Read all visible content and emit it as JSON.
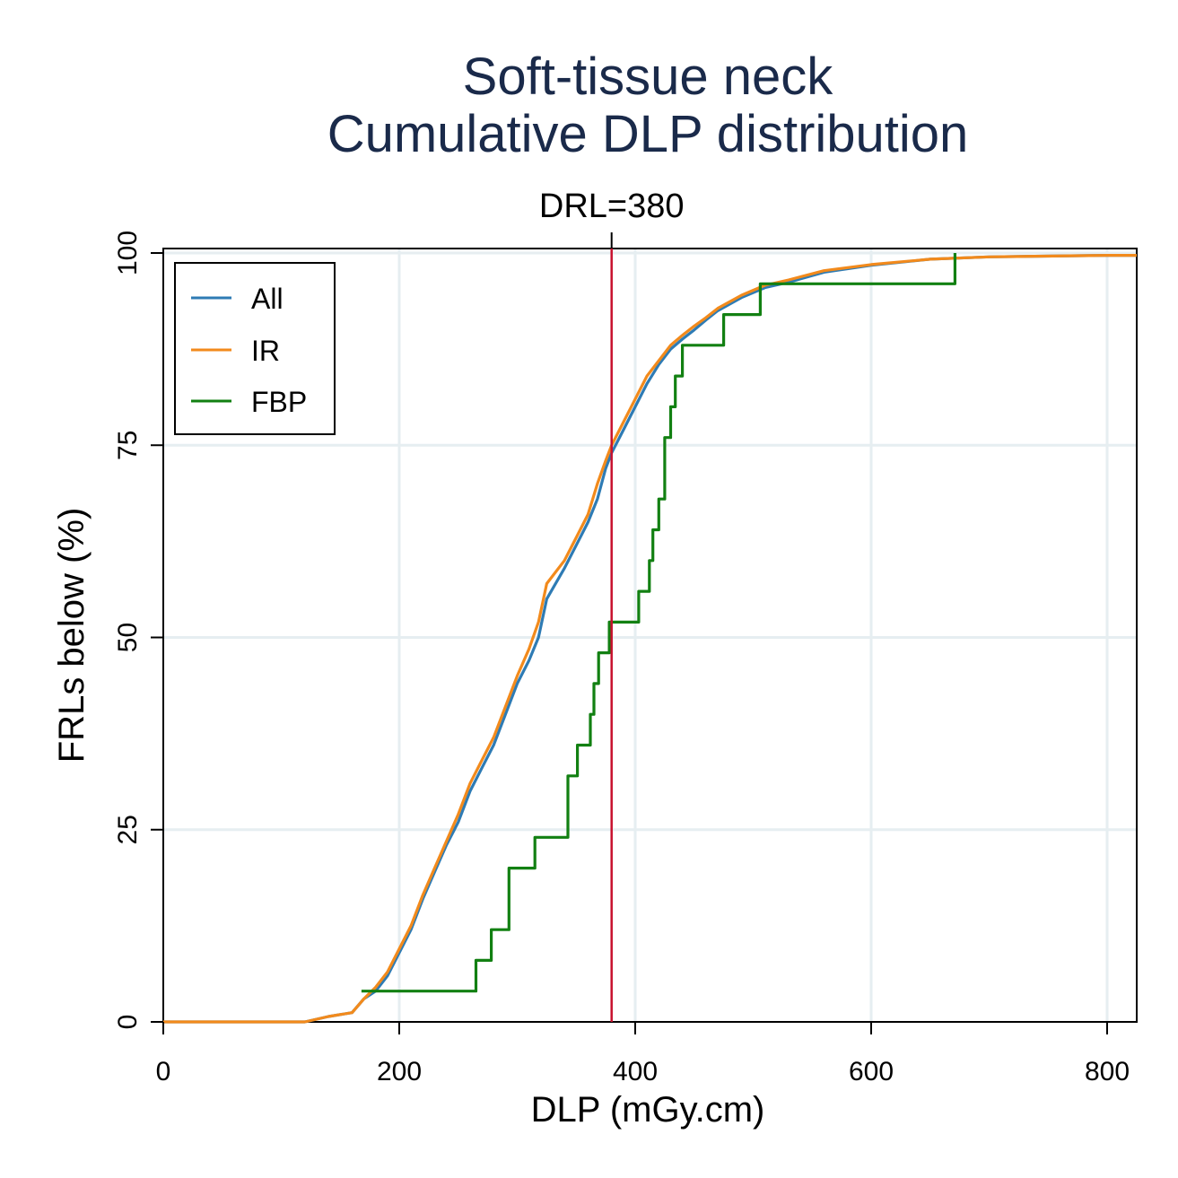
{
  "chart_data": {
    "type": "line",
    "title": [
      "Soft-tissue neck",
      "Cumulative DLP distribution"
    ],
    "xlabel": "DLP (mGy.cm)",
    "ylabel": "FRLs below (%)",
    "xlim": [
      0,
      825
    ],
    "ylim": [
      0,
      100
    ],
    "x_ticks": [
      0,
      200,
      400,
      600,
      800
    ],
    "y_ticks": [
      0,
      25,
      50,
      75,
      100
    ],
    "x_tick_labels": [
      "0",
      "200",
      "400",
      "600",
      "800"
    ],
    "y_tick_labels": [
      "0",
      "25",
      "50",
      "75",
      "100"
    ],
    "grid": true,
    "legend_position": "top-left",
    "reference_line": {
      "x": 380,
      "label": "DRL=380",
      "color": "#c8102e"
    },
    "series": [
      {
        "name": "All",
        "color": "#2e7bb4",
        "step": false,
        "points": [
          [
            0,
            0
          ],
          [
            120,
            0
          ],
          [
            140,
            0.7
          ],
          [
            160,
            1.2
          ],
          [
            170,
            3
          ],
          [
            180,
            4
          ],
          [
            190,
            6
          ],
          [
            200,
            9
          ],
          [
            210,
            12
          ],
          [
            220,
            16
          ],
          [
            230,
            19.5
          ],
          [
            240,
            23
          ],
          [
            250,
            26
          ],
          [
            260,
            30
          ],
          [
            270,
            33
          ],
          [
            280,
            36
          ],
          [
            290,
            40
          ],
          [
            300,
            44
          ],
          [
            310,
            47
          ],
          [
            318,
            50
          ],
          [
            325,
            55
          ],
          [
            340,
            59
          ],
          [
            350,
            62
          ],
          [
            360,
            65
          ],
          [
            368,
            68
          ],
          [
            375,
            72
          ],
          [
            380,
            74
          ],
          [
            390,
            77
          ],
          [
            400,
            80
          ],
          [
            410,
            83
          ],
          [
            420,
            85.5
          ],
          [
            430,
            87.5
          ],
          [
            440,
            88.8
          ],
          [
            450,
            90
          ],
          [
            460,
            91.3
          ],
          [
            470,
            92.5
          ],
          [
            490,
            94.2
          ],
          [
            510,
            95.5
          ],
          [
            530,
            96.2
          ],
          [
            560,
            97.5
          ],
          [
            600,
            98.4
          ],
          [
            650,
            99.2
          ],
          [
            700,
            99.5
          ],
          [
            800,
            99.7
          ],
          [
            825,
            99.7
          ]
        ]
      },
      {
        "name": "IR",
        "color": "#f28a1c",
        "step": false,
        "points": [
          [
            0,
            0
          ],
          [
            120,
            0
          ],
          [
            140,
            0.7
          ],
          [
            160,
            1.2
          ],
          [
            170,
            3
          ],
          [
            180,
            4.5
          ],
          [
            190,
            6.5
          ],
          [
            200,
            9.5
          ],
          [
            210,
            12.5
          ],
          [
            220,
            16.5
          ],
          [
            230,
            20
          ],
          [
            240,
            23.5
          ],
          [
            250,
            27
          ],
          [
            260,
            31
          ],
          [
            270,
            34
          ],
          [
            280,
            37
          ],
          [
            290,
            41
          ],
          [
            300,
            45
          ],
          [
            310,
            48.5
          ],
          [
            318,
            52
          ],
          [
            325,
            57
          ],
          [
            340,
            60
          ],
          [
            350,
            63
          ],
          [
            360,
            66
          ],
          [
            368,
            70
          ],
          [
            375,
            73
          ],
          [
            380,
            75
          ],
          [
            390,
            78
          ],
          [
            400,
            81
          ],
          [
            410,
            84
          ],
          [
            420,
            86
          ],
          [
            430,
            88
          ],
          [
            440,
            89.3
          ],
          [
            450,
            90.5
          ],
          [
            460,
            91.6
          ],
          [
            470,
            92.8
          ],
          [
            490,
            94.5
          ],
          [
            510,
            95.8
          ],
          [
            530,
            96.5
          ],
          [
            560,
            97.7
          ],
          [
            600,
            98.5
          ],
          [
            650,
            99.2
          ],
          [
            700,
            99.5
          ],
          [
            800,
            99.7
          ],
          [
            825,
            99.7
          ]
        ]
      },
      {
        "name": "FBP",
        "color": "#128012",
        "step": true,
        "points": [
          [
            168,
            4
          ],
          [
            265,
            8
          ],
          [
            278,
            12
          ],
          [
            293,
            20
          ],
          [
            315,
            24
          ],
          [
            343,
            32
          ],
          [
            351,
            36
          ],
          [
            362,
            40
          ],
          [
            365,
            44
          ],
          [
            369,
            48
          ],
          [
            378,
            52
          ],
          [
            403,
            56
          ],
          [
            412,
            60
          ],
          [
            415,
            64
          ],
          [
            420,
            68
          ],
          [
            425,
            76
          ],
          [
            430,
            80
          ],
          [
            434,
            84
          ],
          [
            440,
            88
          ],
          [
            475,
            92
          ],
          [
            506,
            96
          ],
          [
            671,
            100
          ]
        ]
      }
    ]
  }
}
